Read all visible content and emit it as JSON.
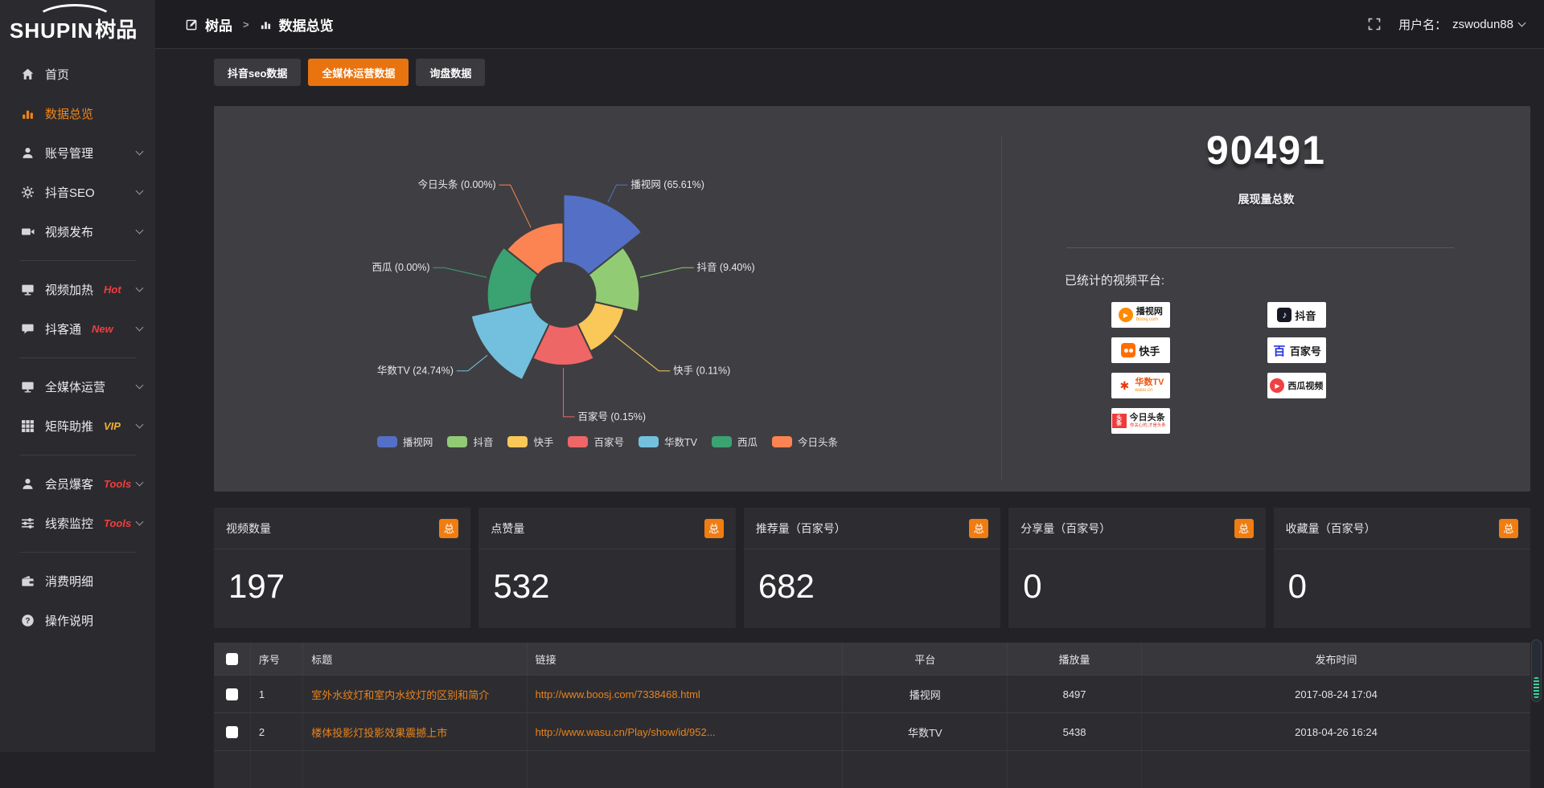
{
  "app": {
    "logo_en": "SHUPIN",
    "logo_cn": "树品"
  },
  "header": {
    "breadcrumb": {
      "root": "树品",
      "separator": ">",
      "current": "数据总览"
    },
    "username_label": "用户名：",
    "username": "zswodun88"
  },
  "sidebar": {
    "items": [
      {
        "id": "home",
        "icon": "home",
        "label": "首页"
      },
      {
        "id": "data-overview",
        "icon": "bar-chart",
        "label": "数据总览",
        "active": true
      },
      {
        "id": "account-management",
        "icon": "user",
        "label": "账号管理",
        "chevron": true
      },
      {
        "id": "douyin-seo",
        "icon": "gear",
        "label": "抖音SEO",
        "chevron": true
      },
      {
        "id": "video-publish",
        "icon": "video",
        "label": "视频发布",
        "chevron": true
      },
      {
        "divider": true
      },
      {
        "id": "video-heat",
        "icon": "monitor-play",
        "label": "视频加热",
        "tag": "Hot",
        "tag_color": "#f23d3d",
        "chevron": true
      },
      {
        "id": "douketong",
        "icon": "chat",
        "label": "抖客通",
        "tag": "New",
        "tag_color": "#f23d3d",
        "chevron": true
      },
      {
        "divider": true
      },
      {
        "id": "all-media-operation",
        "icon": "monitor",
        "label": "全媒体运营",
        "chevron": true
      },
      {
        "id": "matrix-boost",
        "icon": "grid",
        "label": "矩阵助推",
        "tag": "VIP",
        "tag_color": "#f0b02f",
        "chevron": true
      },
      {
        "divider": true
      },
      {
        "id": "member-baoke",
        "icon": "user-star",
        "label": "会员爆客",
        "tag": "Tools",
        "tag_color": "#f23d3d",
        "chevron": true
      },
      {
        "id": "clue-monitor",
        "icon": "sliders",
        "label": "线索监控",
        "tag": "Tools",
        "tag_color": "#f23d3d",
        "chevron": true
      },
      {
        "divider": true
      },
      {
        "id": "consume-detail",
        "icon": "wallet",
        "label": "消费明细"
      },
      {
        "id": "operation-guide",
        "icon": "question",
        "label": "操作说明"
      }
    ]
  },
  "tabs": [
    {
      "id": "douyin-seo-data",
      "label": "抖音seo数据"
    },
    {
      "id": "all-media-operation-data",
      "label": "全媒体运营数据",
      "active": true
    },
    {
      "id": "inquiry-data",
      "label": "询盘数据"
    }
  ],
  "overview": {
    "impressions_total": "90491",
    "impressions_label": "展现量总数",
    "platforms_label": "已统计的视频平台:",
    "platforms": [
      {
        "id": "boosj",
        "name": "播视网",
        "sub": "boosj.com",
        "logo": "boosj"
      },
      {
        "id": "douyin",
        "name": "抖音",
        "logo": "douyin"
      },
      {
        "id": "kuaishou",
        "name": "快手",
        "logo": "kuaishou"
      },
      {
        "id": "baijiahao",
        "name": "百家号",
        "logo": "baijiahao"
      },
      {
        "id": "wasu",
        "name": "华数TV",
        "sub": "wasu.cn",
        "logo": "wasu"
      },
      {
        "id": "xigua",
        "name": "西瓜视频",
        "logo": "xigua"
      },
      {
        "id": "toutiao",
        "name": "今日头条",
        "sub": "你关心的,才是头条",
        "logo": "toutiao"
      }
    ]
  },
  "chart_data": {
    "type": "pie",
    "variant": "rose",
    "legend_position": "bottom",
    "inner_radius": 40,
    "series": [
      {
        "name": "播视网",
        "percent": 65.61,
        "color": "#5470c6",
        "radius": 125
      },
      {
        "name": "抖音",
        "percent": 9.4,
        "color": "#91cc75",
        "radius": 95
      },
      {
        "name": "快手",
        "percent": 0.11,
        "color": "#fac858",
        "radius": 78
      },
      {
        "name": "百家号",
        "percent": 0.15,
        "color": "#ee6666",
        "radius": 88
      },
      {
        "name": "华数TV",
        "percent": 24.74,
        "color": "#73c0de",
        "radius": 118
      },
      {
        "name": "西瓜",
        "percent": 0.0,
        "color": "#3ba272",
        "radius": 95
      },
      {
        "name": "今日头条",
        "percent": 0.0,
        "color": "#fc8452",
        "radius": 90
      }
    ]
  },
  "stat_cards": [
    {
      "id": "video-count",
      "title": "视频数量",
      "badge": "总",
      "value": "197"
    },
    {
      "id": "like-count",
      "title": "点赞量",
      "badge": "总",
      "value": "532"
    },
    {
      "id": "recommend-count",
      "title": "推荐量（百家号）",
      "badge": "总",
      "value": "682"
    },
    {
      "id": "share-count",
      "title": "分享量（百家号）",
      "badge": "总",
      "value": "0"
    },
    {
      "id": "favorite-count",
      "title": "收藏量（百家号）",
      "badge": "总",
      "value": "0"
    }
  ],
  "table": {
    "headers": [
      "序号",
      "标题",
      "链接",
      "平台",
      "播放量",
      "发布时间"
    ],
    "rows": [
      {
        "num": "1",
        "title": "室外水纹灯和室内水纹灯的区别和简介",
        "link": "http://www.boosj.com/7338468.html",
        "platform": "播视网",
        "views": "8497",
        "time": "2017-08-24 17:04"
      },
      {
        "num": "2",
        "title": "楼体投影灯投影效果震撼上市",
        "link": "http://www.wasu.cn/Play/show/id/952...",
        "platform": "华数TV",
        "views": "5438",
        "time": "2018-04-26 16:24"
      },
      {
        "num": "",
        "title": "",
        "link": "",
        "platform": "",
        "views": "",
        "time": ""
      }
    ]
  }
}
